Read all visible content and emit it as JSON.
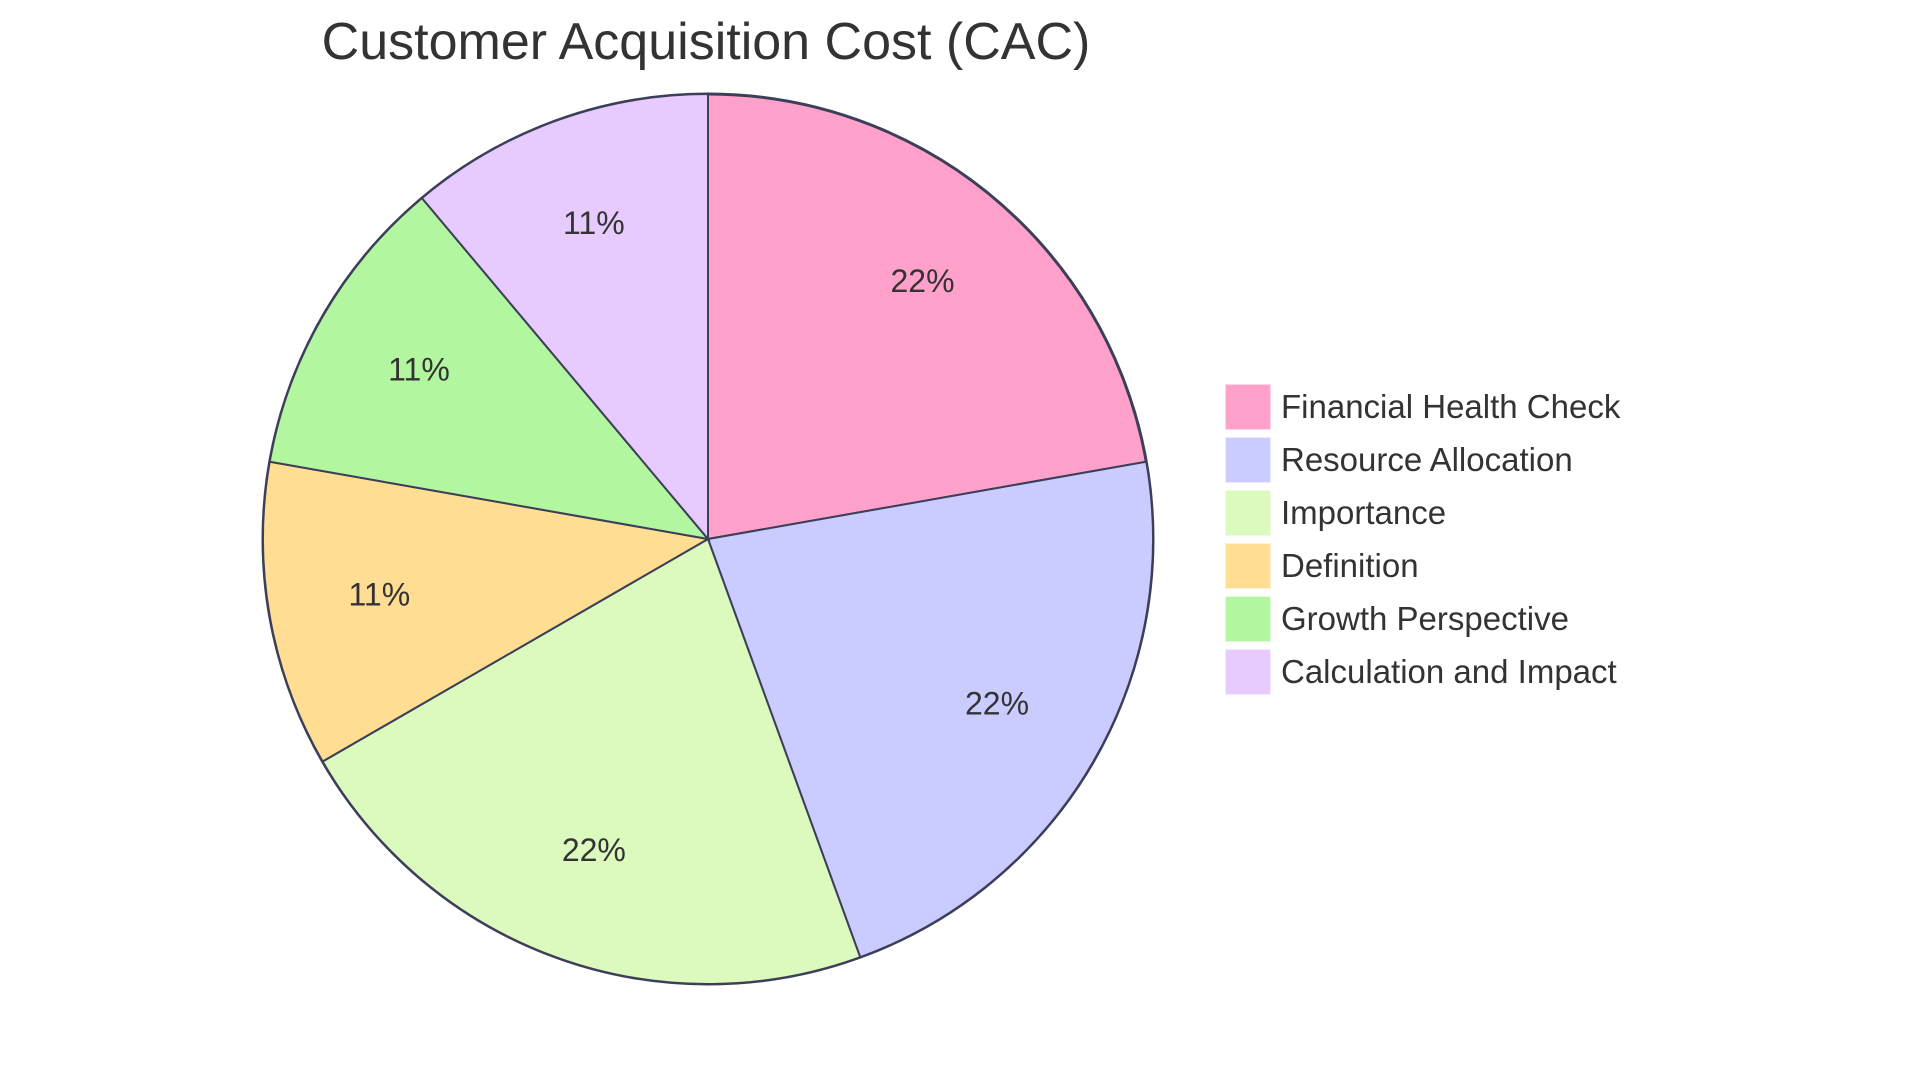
{
  "title": "Customer Acquisition Cost (CAC)",
  "chart_data": {
    "type": "pie",
    "title": "Customer Acquisition Cost (CAC)",
    "categories": [
      "Financial Health Check",
      "Resource Allocation",
      "Importance",
      "Definition",
      "Growth Perspective",
      "Calculation and Impact"
    ],
    "values": [
      22.22,
      22.22,
      22.22,
      11.11,
      11.11,
      11.11
    ],
    "labels": [
      "22%",
      "22%",
      "22%",
      "11%",
      "11%",
      "11%"
    ],
    "colors": [
      "#FFA1CB",
      "#CACCFF",
      "#DCF9BE",
      "#FFDE94",
      "#B2F7A0",
      "#E7CBFF"
    ],
    "legend_position": "right",
    "start_angle": "top, clockwise"
  },
  "legend": {
    "items": [
      {
        "label": "Financial Health Check",
        "color": "#FFA1CB"
      },
      {
        "label": "Resource Allocation",
        "color": "#CACCFF"
      },
      {
        "label": "Importance",
        "color": "#DCF9BE"
      },
      {
        "label": "Definition",
        "color": "#FFDE94"
      },
      {
        "label": "Growth Perspective",
        "color": "#B2F7A0"
      },
      {
        "label": "Calculation and Impact",
        "color": "#E7CBFF"
      }
    ]
  }
}
